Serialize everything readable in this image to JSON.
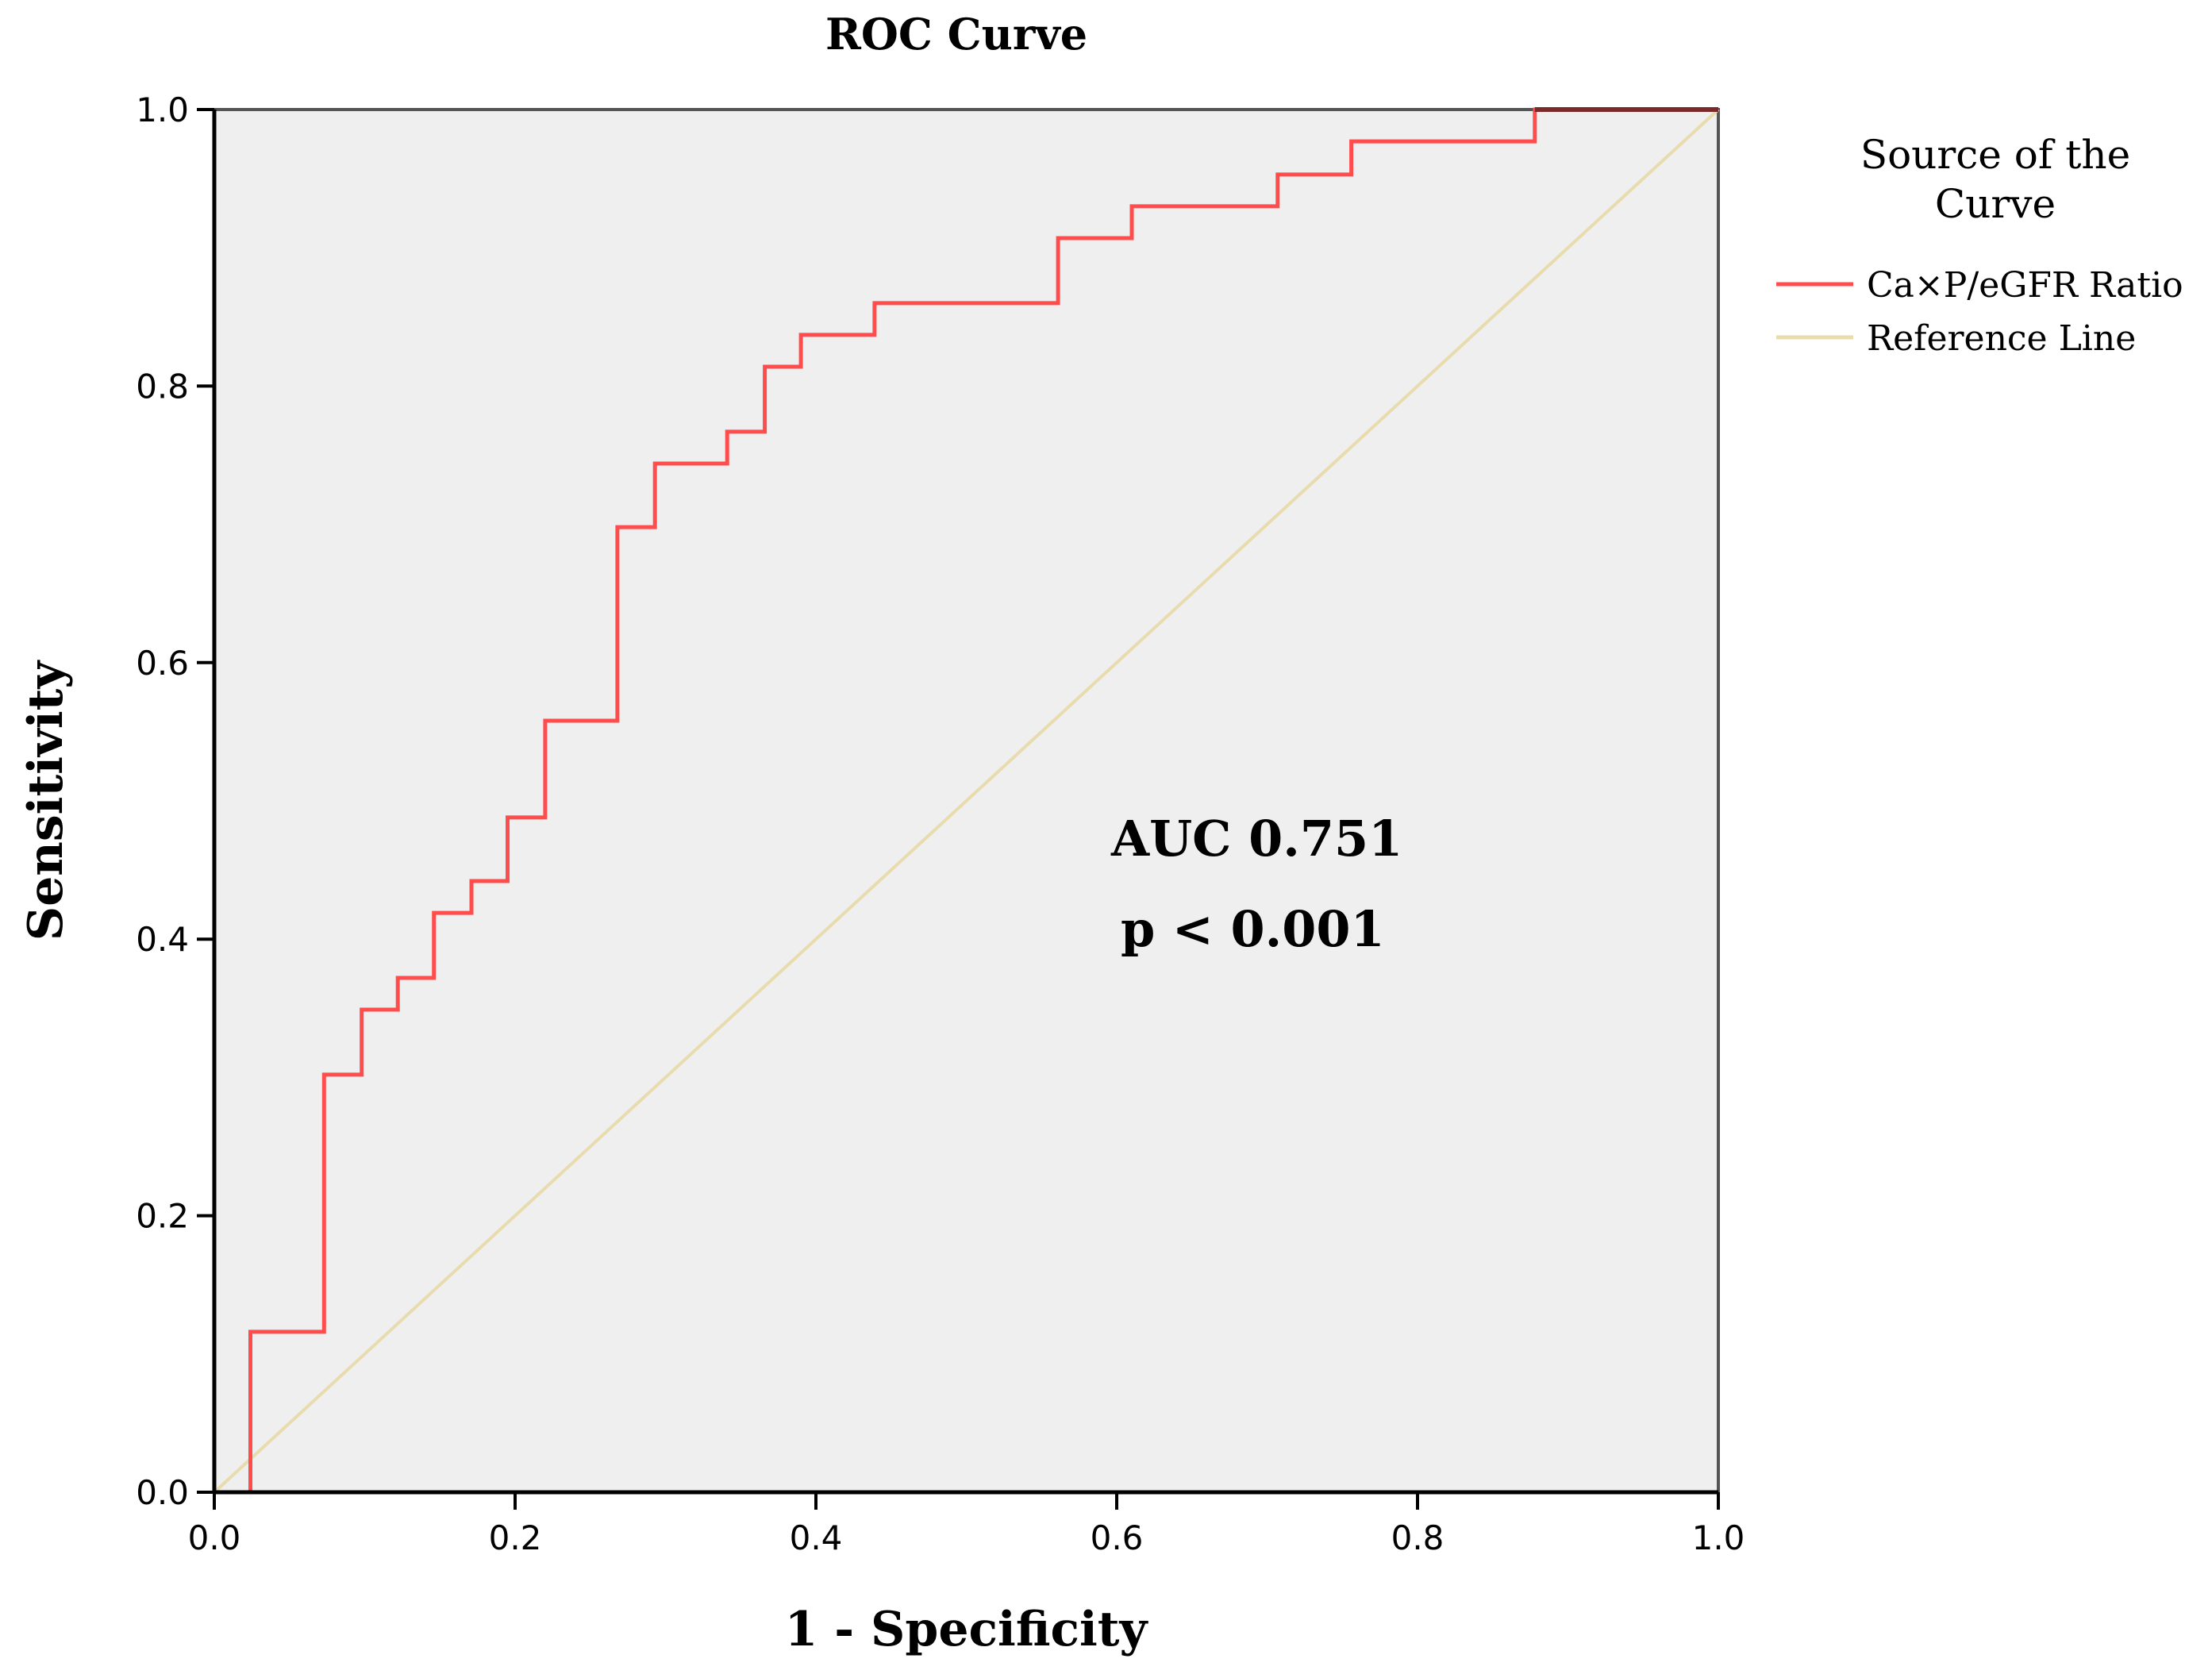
{
  "chart_data": {
    "type": "line",
    "title": "ROC Curve",
    "xlabel": "1 - Specificity",
    "ylabel": "Sensitivity",
    "xlim": [
      0,
      1
    ],
    "ylim": [
      0,
      1
    ],
    "x_ticks": [
      0.0,
      0.2,
      0.4,
      0.6,
      0.8,
      1.0
    ],
    "y_ticks": [
      0.0,
      0.2,
      0.4,
      0.6,
      0.8,
      1.0
    ],
    "x_tick_labels": [
      "0.0",
      "0.2",
      "0.4",
      "0.6",
      "0.8",
      "1.0"
    ],
    "y_tick_labels": [
      "0.0",
      "0.2",
      "0.4",
      "0.6",
      "0.8",
      "1.0"
    ],
    "grid": false,
    "legend": {
      "title": "Source of the Curve",
      "title_lines": [
        "Source of the",
        "Curve"
      ],
      "position": "right",
      "entries": [
        "Ca×P/eGFR Ratio",
        "Reference Line"
      ]
    },
    "series": [
      {
        "name": "Ca×P/eGFR Ratio",
        "color": "#ff4d4d",
        "step": true,
        "x": [
          0.0,
          0.024,
          0.024,
          0.073,
          0.073,
          0.098,
          0.098,
          0.122,
          0.122,
          0.146,
          0.146,
          0.171,
          0.171,
          0.195,
          0.195,
          0.22,
          0.22,
          0.268,
          0.268,
          0.293,
          0.293,
          0.341,
          0.341,
          0.366,
          0.366,
          0.39,
          0.39,
          0.439,
          0.439,
          0.561,
          0.561,
          0.61,
          0.61,
          0.707,
          0.707,
          0.756,
          0.756,
          0.878,
          0.878,
          1.0
        ],
        "y": [
          0.0,
          0.0,
          0.116,
          0.116,
          0.302,
          0.302,
          0.349,
          0.349,
          0.372,
          0.372,
          0.419,
          0.419,
          0.442,
          0.442,
          0.488,
          0.488,
          0.558,
          0.558,
          0.698,
          0.698,
          0.744,
          0.744,
          0.767,
          0.767,
          0.814,
          0.814,
          0.837,
          0.837,
          0.86,
          0.86,
          0.907,
          0.907,
          0.93,
          0.93,
          0.953,
          0.953,
          0.977,
          0.977,
          1.0,
          1.0
        ]
      },
      {
        "name": "Reference Line",
        "color": "#e8dcae",
        "step": false,
        "x": [
          0,
          1
        ],
        "y": [
          0,
          1
        ]
      }
    ],
    "annotations": [
      "AUC 0.751",
      "p < 0.001"
    ]
  },
  "colors": {
    "plot_background": "#efefef",
    "axis": "#000000",
    "curve": "#ff4d4d",
    "reference": "#e8dcae",
    "top_segment": "#7a2a2a"
  }
}
